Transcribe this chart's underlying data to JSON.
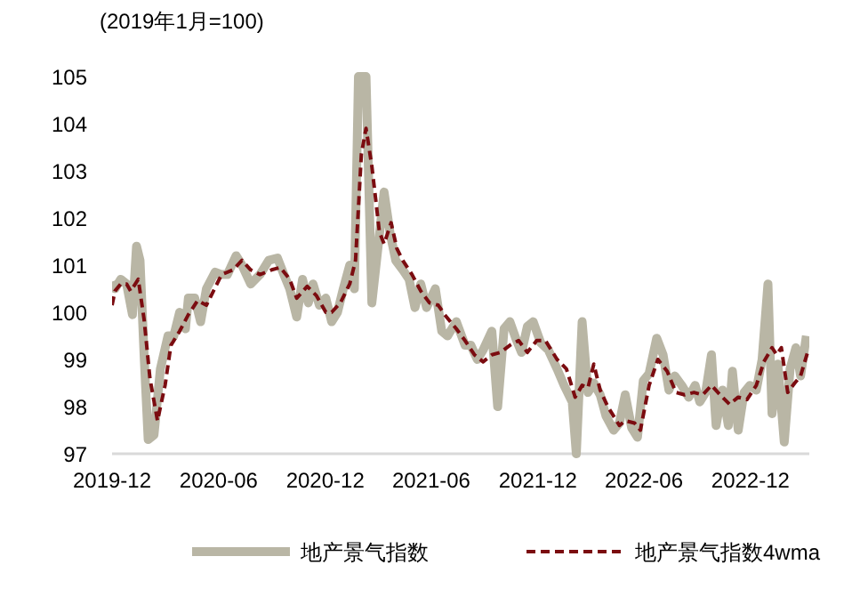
{
  "chart_data": {
    "type": "line",
    "title": "(2019年1月=100)",
    "xlim": [
      "2019-12-01",
      "2023-03-12"
    ],
    "xticks": [
      {
        "value": "2019-12-01",
        "label": "2019-12"
      },
      {
        "value": "2020-06-01",
        "label": "2020-06"
      },
      {
        "value": "2020-12-01",
        "label": "2020-12"
      },
      {
        "value": "2021-06-01",
        "label": "2021-06"
      },
      {
        "value": "2021-12-01",
        "label": "2021-12"
      },
      {
        "value": "2022-06-01",
        "label": "2022-06"
      },
      {
        "value": "2022-12-01",
        "label": "2022-12"
      }
    ],
    "ylim": [
      97,
      105
    ],
    "yticks": [
      97,
      98,
      99,
      100,
      101,
      102,
      103,
      104,
      105
    ],
    "grid": false,
    "legend": "bottom",
    "series": [
      {
        "name": "地产景气指数",
        "color": "#b9b6a5",
        "line_style": "solid",
        "x": [
          "2019-12-01",
          "2019-12-06",
          "2019-12-16",
          "2019-12-26",
          "2020-01-05",
          "2020-01-12",
          "2020-01-18",
          "2020-01-25",
          "2020-02-01",
          "2020-02-11",
          "2020-02-22",
          "2020-03-06",
          "2020-03-16",
          "2020-03-26",
          "2020-04-05",
          "2020-04-10",
          "2020-04-21",
          "2020-05-01",
          "2020-05-11",
          "2020-05-26",
          "2020-06-06",
          "2020-06-16",
          "2020-07-01",
          "2020-07-11",
          "2020-07-26",
          "2020-08-11",
          "2020-08-26",
          "2020-09-10",
          "2020-09-21",
          "2020-10-01",
          "2020-10-13",
          "2020-10-23",
          "2020-11-02",
          "2020-11-10",
          "2020-11-21",
          "2020-12-02",
          "2020-12-12",
          "2020-12-22",
          "2021-01-01",
          "2021-01-12",
          "2021-01-20",
          "2021-01-27",
          "2021-02-09",
          "2021-02-19",
          "2021-03-12",
          "2021-03-22",
          "2021-04-01",
          "2021-04-13",
          "2021-04-24",
          "2021-05-04",
          "2021-05-14",
          "2021-05-24",
          "2021-06-08",
          "2021-06-19",
          "2021-06-29",
          "2021-07-14",
          "2021-07-29",
          "2021-08-08",
          "2021-08-19",
          "2021-08-29",
          "2021-09-13",
          "2021-09-23",
          "2021-10-04",
          "2021-10-14",
          "2021-10-24",
          "2021-11-03",
          "2021-11-13",
          "2021-11-23",
          "2021-12-06",
          "2021-12-19",
          "2022-01-03",
          "2022-01-15",
          "2022-01-29",
          "2022-02-05",
          "2022-02-15",
          "2022-02-25",
          "2022-03-07",
          "2022-03-18",
          "2022-03-28",
          "2022-04-10",
          "2022-04-20",
          "2022-04-30",
          "2022-05-11",
          "2022-05-21",
          "2022-05-31",
          "2022-06-10",
          "2022-06-23",
          "2022-07-04",
          "2022-07-14",
          "2022-07-24",
          "2022-08-05",
          "2022-08-17",
          "2022-08-28",
          "2022-09-05",
          "2022-09-15",
          "2022-09-25",
          "2022-10-03",
          "2022-10-14",
          "2022-10-24",
          "2022-10-31",
          "2022-11-10",
          "2022-11-20",
          "2022-11-30",
          "2022-12-11",
          "2022-12-21",
          "2022-12-31",
          "2023-01-07",
          "2023-01-17",
          "2023-01-28",
          "2023-02-07",
          "2023-02-17",
          "2023-02-25",
          "2023-03-07"
        ],
        "values": [
          100.65,
          100.5,
          100.7,
          100.6,
          99.95,
          101.4,
          101.1,
          99.1,
          97.3,
          97.4,
          98.8,
          99.5,
          99.5,
          100.0,
          99.65,
          100.3,
          100.3,
          99.8,
          100.5,
          100.85,
          100.8,
          100.8,
          101.2,
          101.0,
          100.6,
          100.8,
          101.1,
          101.15,
          100.8,
          100.5,
          99.9,
          100.7,
          100.2,
          100.6,
          100.15,
          100.3,
          99.8,
          100.0,
          100.5,
          101.0,
          100.5,
          105,
          105,
          100.2,
          102.55,
          101.7,
          101.1,
          100.9,
          100.7,
          100.1,
          100.6,
          100.1,
          100.5,
          99.6,
          99.5,
          99.8,
          99.3,
          99.3,
          99.0,
          99.2,
          99.6,
          98.0,
          99.65,
          99.8,
          99.45,
          99.15,
          99.7,
          99.8,
          99.35,
          99.2,
          98.8,
          98.45,
          98.1,
          97.0,
          99.8,
          98.3,
          98.5,
          98.25,
          97.8,
          97.5,
          97.65,
          98.25,
          97.55,
          97.35,
          98.55,
          98.7,
          99.45,
          99.1,
          98.35,
          98.65,
          98.45,
          98.2,
          98.45,
          98.1,
          98.3,
          99.1,
          97.6,
          98.35,
          97.6,
          98.75,
          97.5,
          98.3,
          98.45,
          98.35,
          99.0,
          100.6,
          97.85,
          98.9,
          97.25,
          98.8,
          99.25,
          98.65,
          99.5
        ]
      },
      {
        "name": "地产景气指数4wma",
        "color": "#7b0c10",
        "line_style": "dashed",
        "x": [
          "2019-12-01",
          "2019-12-06",
          "2019-12-16",
          "2019-12-26",
          "2020-01-02",
          "2020-01-15",
          "2020-01-25",
          "2020-02-04",
          "2020-02-17",
          "2020-03-01",
          "2020-03-11",
          "2020-03-26",
          "2020-04-10",
          "2020-04-26",
          "2020-05-11",
          "2020-05-21",
          "2020-06-06",
          "2020-06-26",
          "2020-07-11",
          "2020-07-26",
          "2020-08-11",
          "2020-08-31",
          "2020-09-15",
          "2020-10-01",
          "2020-10-13",
          "2020-10-31",
          "2020-11-16",
          "2020-12-02",
          "2020-12-12",
          "2020-12-27",
          "2021-01-12",
          "2021-01-22",
          "2021-02-01",
          "2021-02-09",
          "2021-02-19",
          "2021-03-04",
          "2021-03-12",
          "2021-03-24",
          "2021-04-03",
          "2021-04-13",
          "2021-04-29",
          "2021-05-14",
          "2021-05-29",
          "2021-06-13",
          "2021-06-24",
          "2021-07-14",
          "2021-07-29",
          "2021-08-14",
          "2021-08-29",
          "2021-09-13",
          "2021-09-28",
          "2021-10-14",
          "2021-10-29",
          "2021-11-13",
          "2021-11-29",
          "2021-12-14",
          "2022-01-03",
          "2022-01-19",
          "2022-02-03",
          "2022-02-15",
          "2022-02-25",
          "2022-03-07",
          "2022-03-18",
          "2022-03-31",
          "2022-04-10",
          "2022-04-20",
          "2022-04-30",
          "2022-05-16",
          "2022-05-26",
          "2022-06-10",
          "2022-06-25",
          "2022-07-11",
          "2022-07-26",
          "2022-08-10",
          "2022-08-26",
          "2022-09-10",
          "2022-09-25",
          "2022-10-10",
          "2022-10-26",
          "2022-11-10",
          "2022-11-25",
          "2022-12-11",
          "2022-12-24",
          "2023-01-07",
          "2023-01-15",
          "2023-01-23",
          "2023-02-03",
          "2023-02-15",
          "2023-02-25",
          "2023-03-09"
        ],
        "values": [
          100.15,
          100.45,
          100.6,
          100.6,
          100.45,
          100.7,
          99.85,
          98.6,
          97.7,
          98.45,
          99.3,
          99.6,
          99.95,
          100.25,
          100.15,
          100.4,
          100.8,
          100.9,
          101.1,
          100.9,
          100.8,
          100.9,
          100.95,
          100.7,
          100.3,
          100.55,
          100.35,
          100.0,
          100.0,
          100.2,
          100.6,
          101.1,
          103.35,
          103.9,
          103.1,
          101.7,
          101.45,
          101.9,
          101.35,
          101.1,
          100.8,
          100.45,
          100.2,
          100.15,
          99.95,
          99.65,
          99.4,
          99.1,
          98.95,
          99.1,
          99.15,
          99.3,
          99.4,
          99.15,
          99.4,
          99.4,
          99.0,
          98.8,
          98.2,
          98.45,
          98.4,
          98.9,
          98.35,
          98.0,
          97.8,
          97.6,
          97.7,
          97.65,
          97.5,
          98.45,
          99.0,
          98.75,
          98.3,
          98.25,
          98.3,
          98.25,
          98.45,
          98.25,
          98.05,
          98.2,
          98.15,
          98.45,
          98.95,
          99.25,
          99.1,
          99.25,
          98.3,
          98.5,
          98.65,
          99.15
        ]
      }
    ]
  }
}
